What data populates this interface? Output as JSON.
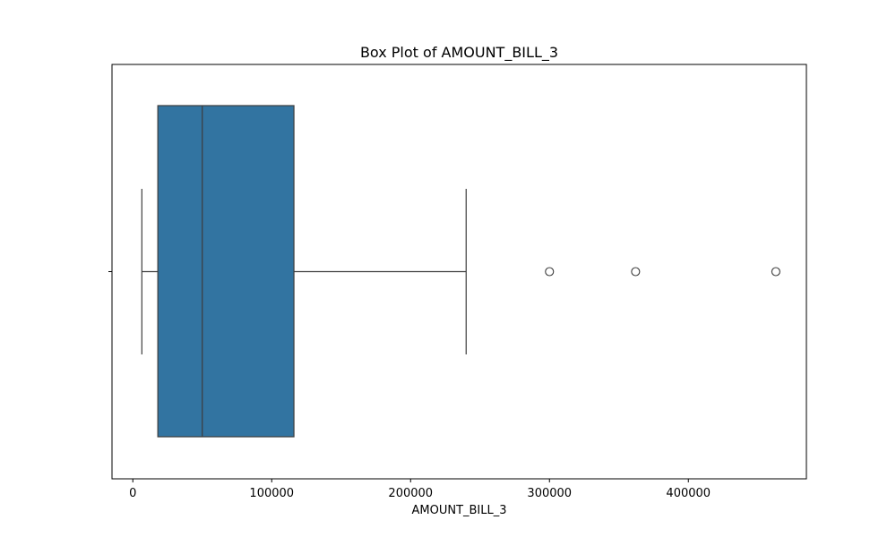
{
  "chart_data": {
    "type": "box",
    "title": "Box Plot of AMOUNT_BILL_3",
    "xlabel": "AMOUNT_BILL_3",
    "ylabel": "",
    "xlim": [
      -15000,
      485000
    ],
    "x_ticks": [
      0,
      100000,
      200000,
      300000,
      400000
    ],
    "x_tick_labels": [
      "0",
      "100000",
      "200000",
      "300000",
      "400000"
    ],
    "grid": false,
    "orientation": "horizontal",
    "box": {
      "whisker_low": 6500,
      "q1": 18000,
      "median": 50000,
      "q3": 116000,
      "whisker_high": 240000
    },
    "outliers": [
      300000,
      362000,
      463000
    ],
    "box_color": "#3274a1",
    "line_color": "#3d3d3d"
  }
}
